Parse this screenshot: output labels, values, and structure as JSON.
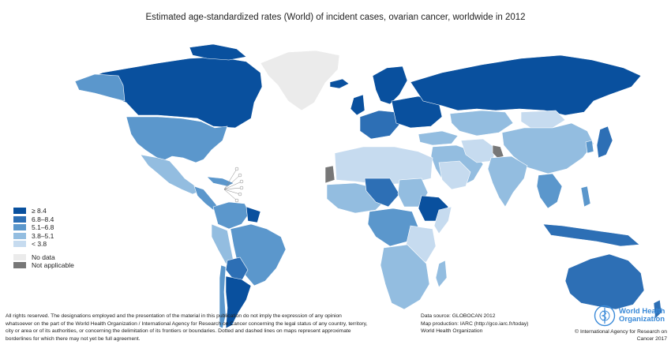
{
  "title": "Estimated age-standardized rates (World) of incident cases, ovarian cancer, worldwide in 2012",
  "colors": {
    "c1": "#09509e",
    "c2": "#2d6fb5",
    "c3": "#5b97cc",
    "c4": "#93bde0",
    "c5": "#c6dbef",
    "nodata": "#ebebeb",
    "na": "#777777",
    "water": "#ffffff"
  },
  "legend": {
    "items": [
      {
        "label": "≥ 8.4",
        "color": "#09509e"
      },
      {
        "label": "6.8–8.4",
        "color": "#2d6fb5"
      },
      {
        "label": "5.1–6.8",
        "color": "#5b97cc"
      },
      {
        "label": "3.8–5.1",
        "color": "#93bde0"
      },
      {
        "label": "< 3.8",
        "color": "#c6dbef"
      }
    ],
    "extras": [
      {
        "label": "No data",
        "color": "#ebebeb"
      },
      {
        "label": "Not applicable",
        "color": "#777777"
      }
    ]
  },
  "disclaimer": [
    "All rights reserved. The designations employed and the presentation of the material in this publication do not imply the expression of any opinion",
    "whatsoever on the part of the World Health Organization / International Agency for Research on Cancer concerning the legal status of any country, territory,",
    "city or area or of its authorities, or concerning the delimitation of its frontiers or boundaries. Dotted and dashed lines on maps represent approximate",
    "borderlines for which there may not yet be full agreement."
  ],
  "sources": [
    "Data source: GLOBOCAN 2012",
    "Map production: IARC (http://gco.iarc.fr/today)",
    "World Health Organization"
  ],
  "who": {
    "line1": "World Health",
    "line2": "Organization",
    "emblem": "who-emblem-icon"
  },
  "copyright": {
    "line1": "© International Agency for Research on",
    "line2": "Cancer 2017"
  }
}
